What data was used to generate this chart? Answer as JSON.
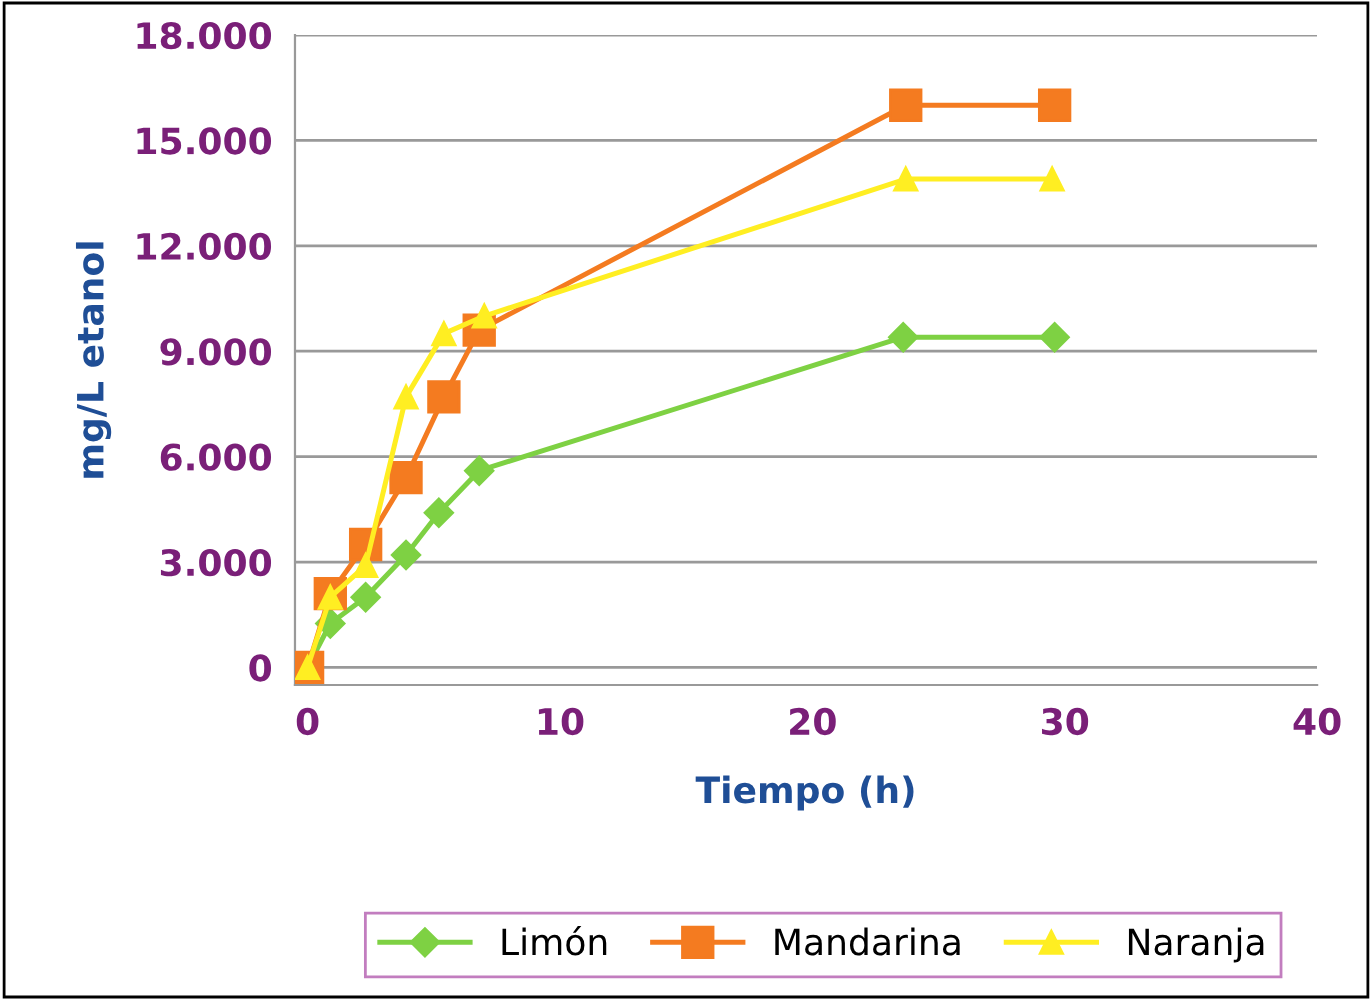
{
  "chart_data": {
    "type": "line",
    "xlabel": "Tiempo (h)",
    "ylabel": "mg/L etanol",
    "xlim": [
      -0.5,
      40
    ],
    "xticks": [
      0,
      10,
      20,
      30,
      40
    ],
    "ylim": [
      -500,
      18000
    ],
    "yticks": [
      {
        "value": 0,
        "label": "0"
      },
      {
        "value": 3000,
        "label": "3.000"
      },
      {
        "value": 6000,
        "label": "6.000"
      },
      {
        "value": 9000,
        "label": "9.000"
      },
      {
        "value": 12000,
        "label": "12.000"
      },
      {
        "value": 15000,
        "label": "15.000"
      },
      {
        "value": 18000,
        "label": "18.000"
      }
    ],
    "grid": "y",
    "legend": "bottom",
    "series": [
      {
        "name": "Limón",
        "color": "#7ed143",
        "marker": "diamond",
        "x": [
          0,
          0.9,
          2.3,
          3.9,
          5.2,
          6.8,
          23.6,
          29.6
        ],
        "values": [
          0,
          1250,
          2000,
          3200,
          4400,
          5600,
          9400,
          9400
        ]
      },
      {
        "name": "Mandarina",
        "color": "#f47b20",
        "marker": "square",
        "x": [
          0,
          0.9,
          2.3,
          3.9,
          5.4,
          6.8,
          23.7,
          29.6
        ],
        "values": [
          0,
          2100,
          3500,
          5400,
          7700,
          9600,
          16000,
          16000
        ]
      },
      {
        "name": "Naranja",
        "color": "#ffee22",
        "marker": "triangle",
        "x": [
          0,
          0.9,
          2.3,
          3.9,
          5.4,
          7.0,
          23.7,
          29.5
        ],
        "values": [
          0,
          2000,
          2900,
          7700,
          9500,
          10000,
          13900,
          13900
        ]
      }
    ]
  }
}
